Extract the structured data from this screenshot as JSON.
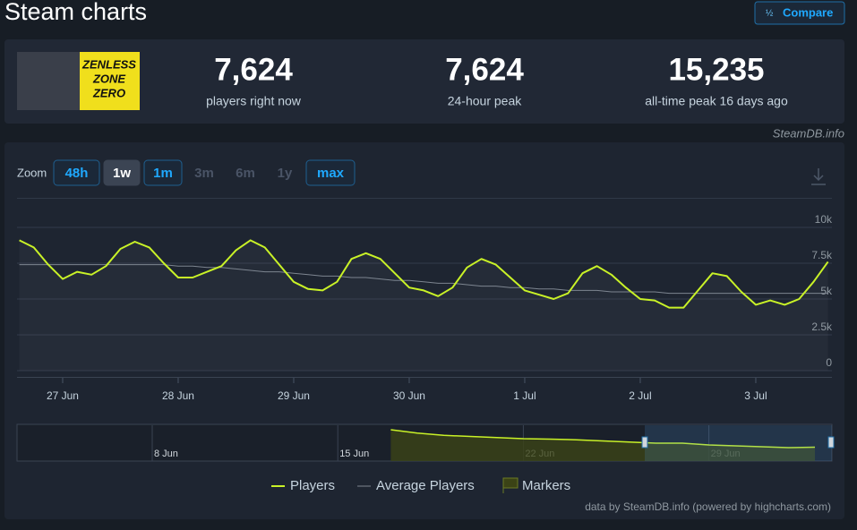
{
  "header": {
    "title": "Steam charts",
    "compare": "Compare"
  },
  "game": {
    "logo_text": [
      "ZENLESS",
      "ZONE",
      "ZERO"
    ]
  },
  "stats": [
    {
      "value": "7,624",
      "label": "players right now"
    },
    {
      "value": "7,624",
      "label": "24-hour peak"
    },
    {
      "value": "15,235",
      "label": "all-time peak 16 days ago"
    }
  ],
  "source": "SteamDB.info",
  "zoom": {
    "label": "Zoom",
    "options": [
      "48h",
      "1w",
      "1m",
      "3m",
      "6m",
      "1y",
      "max"
    ],
    "selected_index": 1,
    "disabled_indices": [
      3,
      4,
      5
    ]
  },
  "chart_data": [
    {
      "type": "line",
      "categories": [
        null,
        null,
        null,
        "27 Jun",
        null,
        null,
        null,
        null,
        null,
        null,
        null,
        "28 Jun",
        null,
        null,
        null,
        null,
        null,
        null,
        null,
        "29 Jun",
        null,
        null,
        null,
        null,
        null,
        null,
        null,
        "30 Jun",
        null,
        null,
        null,
        null,
        null,
        null,
        null,
        "1 Jul",
        null,
        null,
        null,
        null,
        null,
        null,
        null,
        "2 Jul",
        null,
        null,
        null,
        null,
        null,
        null,
        null,
        "3 Jul",
        null,
        null,
        null,
        null,
        null
      ],
      "series": [
        {
          "name": "Players",
          "color": "#c9f227",
          "values": [
            9100,
            8600,
            7400,
            6400,
            6900,
            6700,
            7300,
            8500,
            9000,
            8600,
            7500,
            6500,
            6500,
            6900,
            7300,
            8400,
            9100,
            8600,
            7400,
            6200,
            5700,
            5600,
            6200,
            7800,
            8200,
            7800,
            6800,
            5800,
            5600,
            5200,
            5800,
            7200,
            7800,
            7400,
            6500,
            5600,
            5300,
            5000,
            5400,
            6800,
            7300,
            6700,
            5800,
            5000,
            4900,
            4400,
            4400,
            5600,
            6800,
            6600,
            5500,
            4600,
            4900,
            4600,
            5000,
            6200,
            7600
          ]
        },
        {
          "name": "Average Players",
          "color": "#7d8590",
          "values": [
            7400,
            7400,
            7400,
            7400,
            7400,
            7400,
            7400,
            7400,
            7400,
            7400,
            7400,
            7300,
            7300,
            7200,
            7200,
            7100,
            7000,
            6900,
            6900,
            6800,
            6700,
            6600,
            6600,
            6500,
            6500,
            6400,
            6300,
            6300,
            6200,
            6100,
            6100,
            6000,
            5900,
            5900,
            5800,
            5800,
            5700,
            5700,
            5600,
            5600,
            5600,
            5500,
            5500,
            5500,
            5500,
            5400,
            5400,
            5400,
            5400,
            5400,
            5400,
            5400,
            5400,
            5400,
            5400,
            5400,
            5400
          ]
        }
      ],
      "ylim": [
        0,
        12000
      ],
      "yticks": [
        0,
        {
          "value": 2500,
          "label": "2.5k"
        },
        {
          "value": 5000,
          "label": "5k"
        },
        {
          "value": 7500,
          "label": "7.5k"
        },
        {
          "value": 10000,
          "label": "10k"
        }
      ],
      "grid": true,
      "markers_label": "Markers"
    },
    {
      "type": "area",
      "categories": [
        null,
        null,
        null,
        null,
        null,
        "8 Jun",
        null,
        null,
        null,
        null,
        null,
        null,
        "15 Jun",
        null,
        null,
        null,
        null,
        null,
        null,
        "22 Jun",
        null,
        null,
        null,
        null,
        null,
        null,
        "29 Jun",
        null,
        null,
        null,
        null
      ],
      "series": [
        {
          "color": "#c9f227",
          "values": [
            null,
            null,
            null,
            null,
            null,
            null,
            null,
            null,
            null,
            null,
            null,
            null,
            null,
            null,
            14000,
            12500,
            11500,
            11000,
            10500,
            10000,
            9800,
            9500,
            9000,
            8500,
            8000,
            8000,
            7200,
            6800,
            6400,
            6000,
            6200
          ]
        }
      ],
      "ylim": [
        0,
        16000
      ]
    }
  ],
  "credit": "data by SteamDB.info (powered by highcharts.com)"
}
